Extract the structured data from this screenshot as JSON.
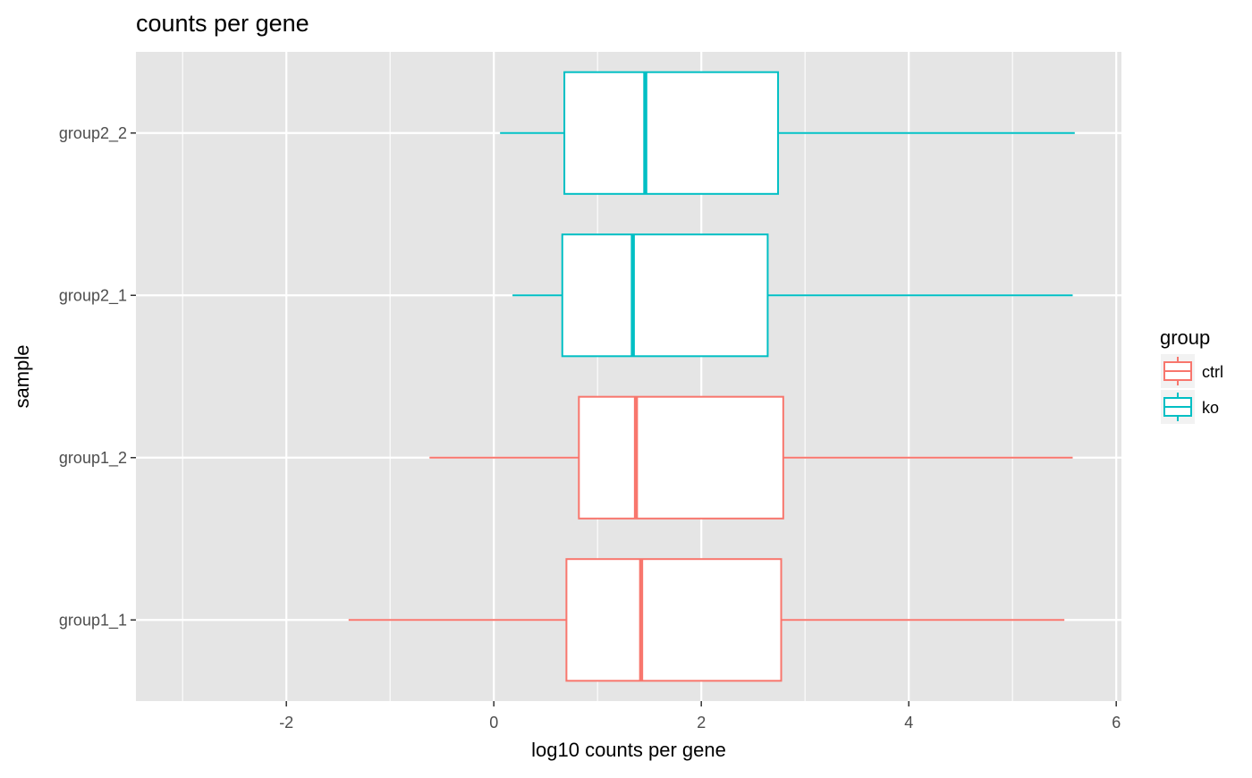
{
  "chart_data": {
    "type": "boxplot",
    "title": "counts per gene",
    "xlabel": "log10 counts per gene",
    "ylabel": "sample",
    "xlim": [
      -3.45,
      6.05
    ],
    "x_ticks": [
      -2,
      0,
      2,
      4,
      6
    ],
    "x_minor_ticks": [
      -3,
      -1,
      1,
      3,
      5
    ],
    "orientation": "horizontal",
    "grid": true,
    "panel_background": "#e5e5e5",
    "categories": [
      "group1_1",
      "group1_2",
      "group2_1",
      "group2_2"
    ],
    "series": [
      {
        "sample": "group1_1",
        "group": "ctrl",
        "min": -1.4,
        "q1": 0.7,
        "median": 1.42,
        "q3": 2.77,
        "max": 5.5
      },
      {
        "sample": "group1_2",
        "group": "ctrl",
        "min": -0.62,
        "q1": 0.82,
        "median": 1.37,
        "q3": 2.79,
        "max": 5.58
      },
      {
        "sample": "group2_1",
        "group": "ko",
        "min": 0.18,
        "q1": 0.66,
        "median": 1.34,
        "q3": 2.64,
        "max": 5.58
      },
      {
        "sample": "group2_2",
        "group": "ko",
        "min": 0.06,
        "q1": 0.68,
        "median": 1.46,
        "q3": 2.74,
        "max": 5.6
      }
    ],
    "legend": {
      "title": "group",
      "position": "right",
      "items": [
        {
          "label": "ctrl",
          "color": "#f8766d"
        },
        {
          "label": "ko",
          "color": "#00bfc4"
        }
      ]
    }
  }
}
